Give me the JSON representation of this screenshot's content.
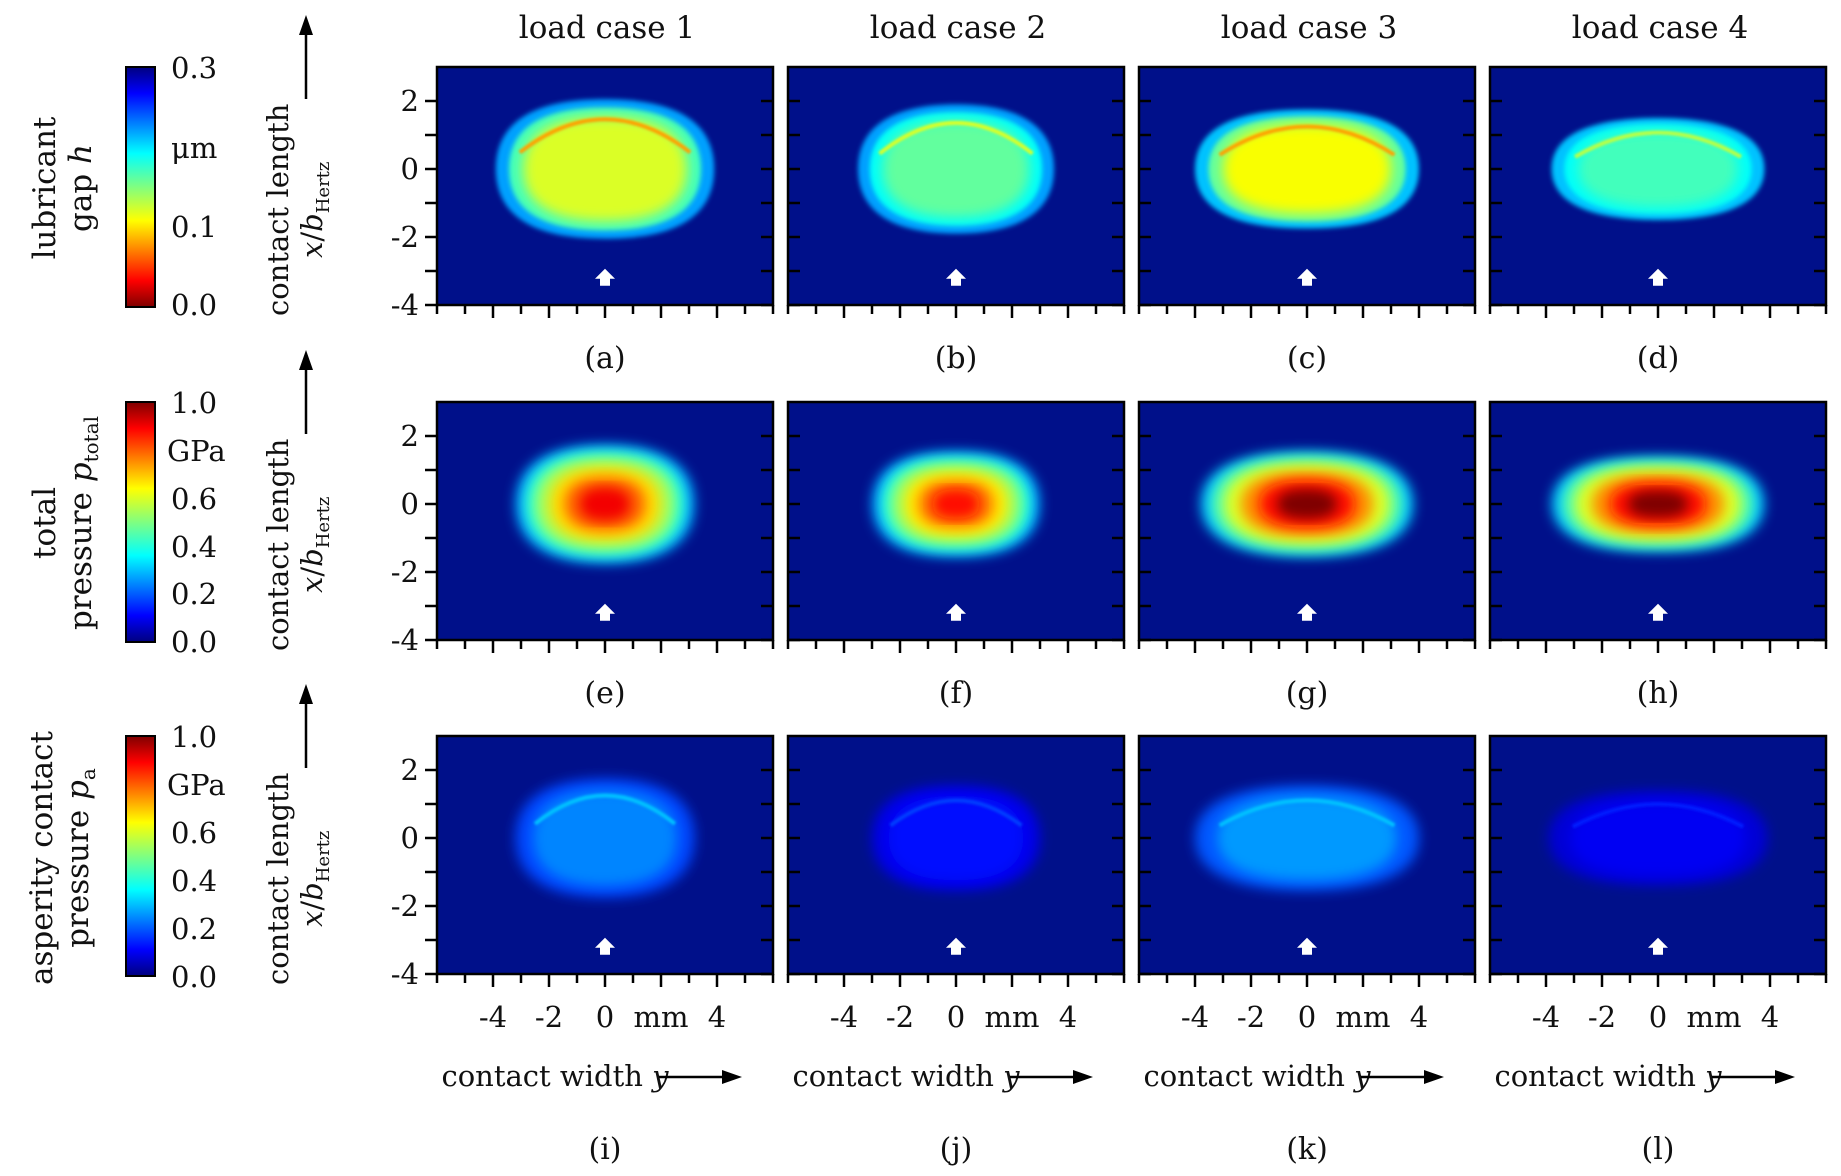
{
  "chart_data": {
    "type": "heatmap",
    "layout": "3x4 grid",
    "columns": [
      "load case 1",
      "load case 2",
      "load case 3",
      "load case 4"
    ],
    "x_axis": {
      "label": "contact width",
      "var": "y",
      "unit": "mm",
      "range": [
        -6,
        6
      ],
      "major_ticks": [
        -4,
        -2,
        0,
        2,
        4
      ],
      "tick_labels": [
        "-4",
        "-2",
        "0",
        "mm",
        "4"
      ]
    },
    "y_axis": {
      "label": "contact length",
      "var": "x",
      "sep": "/",
      "denom": "b",
      "denom_sub": "Hertz",
      "range": [
        -4,
        3
      ],
      "ticks": [
        "2",
        "0",
        "-2",
        "-4"
      ]
    },
    "rows": [
      {
        "key": "gap",
        "title_line1": "lubricant",
        "title_line2_text": "gap ",
        "title_line2_var": "h",
        "colorbar": {
          "scheme": "jet_reversed",
          "ticks": [
            "0.3",
            "0.1",
            "0.0"
          ],
          "unit": "μm",
          "min": 0.0,
          "max": 0.3
        },
        "panels": [
          {
            "label": "(a)",
            "half_width_mm": 3.9,
            "half_length": 2.1,
            "tip_length": 2.05,
            "level": 0.12,
            "edge_level": 0.22,
            "center_line": 0.07,
            "rim_line": 0.08
          },
          {
            "label": "(b)",
            "half_width_mm": 3.5,
            "half_length": 1.9,
            "tip_length": 1.9,
            "level": 0.16,
            "edge_level": 0.22,
            "center_line": 0.12,
            "rim_line": 0.12
          },
          {
            "label": "(c)",
            "half_width_mm": 4.0,
            "half_length": 1.8,
            "tip_length": 1.75,
            "level": 0.11,
            "edge_level": 0.21,
            "center_line": 0.07,
            "rim_line": 0.08
          },
          {
            "label": "(d)",
            "half_width_mm": 3.8,
            "half_length": 1.5,
            "tip_length": 1.5,
            "level": 0.17,
            "edge_level": 0.21,
            "center_line": 0.13,
            "rim_line": 0.13
          }
        ]
      },
      {
        "key": "total",
        "title_line1": "total",
        "title_line2_text": "pressure ",
        "title_line2_var": "p",
        "title_line2_sub": "total",
        "colorbar": {
          "scheme": "jet",
          "ticks": [
            "1.0",
            "0.6",
            "0.4",
            "0.2",
            "0.0"
          ],
          "unit": "GPa",
          "min": 0.0,
          "max": 1.0
        },
        "panels": [
          {
            "label": "(e)",
            "half_width_mm": 3.2,
            "half_length": 1.75,
            "tip_length": 1.75,
            "peak": 0.9,
            "center_line": 0.92
          },
          {
            "label": "(f)",
            "half_width_mm": 3.0,
            "half_length": 1.6,
            "tip_length": 1.55,
            "peak": 0.88,
            "center_line": 0.0
          },
          {
            "label": "(g)",
            "half_width_mm": 3.8,
            "half_length": 1.55,
            "tip_length": 1.55,
            "peak": 1.0,
            "center_line": 0.0
          },
          {
            "label": "(h)",
            "half_width_mm": 3.8,
            "half_length": 1.45,
            "tip_length": 1.4,
            "peak": 1.0,
            "center_line": 0.0
          }
        ]
      },
      {
        "key": "asperity",
        "title_line1": "asperity contact",
        "title_line2_text": "pressure ",
        "title_line2_var": "p",
        "title_line2_sub": "a",
        "colorbar": {
          "scheme": "jet",
          "ticks": [
            "1.0",
            "0.6",
            "0.4",
            "0.2",
            "0.0"
          ],
          "unit": "GPa",
          "min": 0.0,
          "max": 1.0
        },
        "panels": [
          {
            "label": "(i)",
            "half_width_mm": 3.2,
            "half_length": 1.75,
            "tip_length": 1.75,
            "level": 0.24,
            "center_line": 0.38,
            "rim_line": 0.3
          },
          {
            "label": "(j)",
            "half_width_mm": 3.0,
            "half_length": 1.6,
            "tip_length": 1.55,
            "level": 0.12,
            "center_line": 0.2,
            "rim_line": 0.17
          },
          {
            "label": "(k)",
            "half_width_mm": 4.0,
            "half_length": 1.55,
            "tip_length": 1.55,
            "level": 0.26,
            "center_line": 0.36,
            "rim_line": 0.3
          },
          {
            "label": "(l)",
            "half_width_mm": 3.9,
            "half_length": 1.45,
            "tip_length": 1.4,
            "level": 0.1,
            "center_line": 0.13,
            "rim_line": 0.14
          }
        ]
      }
    ],
    "marker": "rolling-direction arrow at x/b_Hertz = -3.2"
  },
  "colors": {
    "background": "#00108a",
    "axis": "#000000",
    "marker": "#ffffff"
  }
}
